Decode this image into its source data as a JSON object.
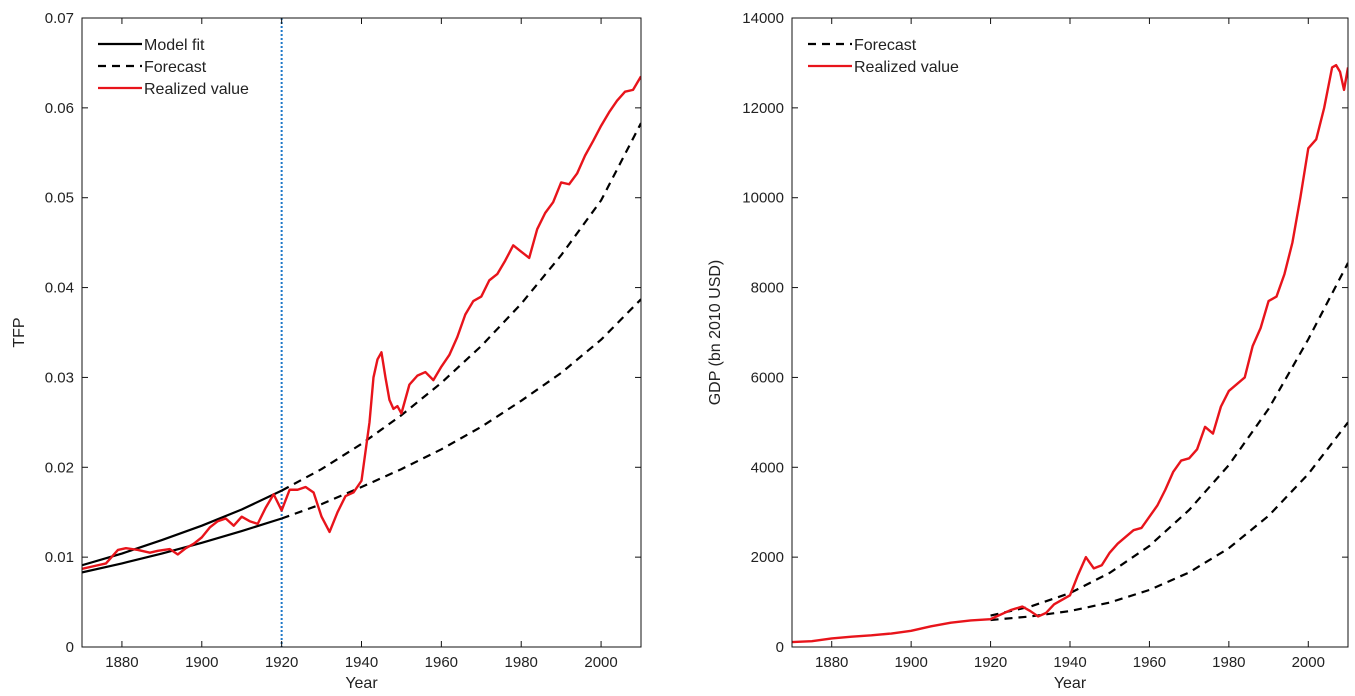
{
  "chart_data": [
    {
      "type": "line",
      "title": "",
      "xlabel": "Year",
      "ylabel": "TFP",
      "xlim": [
        1870,
        2010
      ],
      "ylim": [
        0,
        0.07
      ],
      "xticks": [
        1880,
        1900,
        1920,
        1940,
        1960,
        1980,
        2000
      ],
      "xtick_labels": [
        "1880",
        "1900",
        "1920",
        "1940",
        "1960",
        "1980",
        "2000"
      ],
      "yticks": [
        0,
        0.01,
        0.02,
        0.03,
        0.04,
        0.05,
        0.06,
        0.07
      ],
      "ytick_labels": [
        "0",
        "0.01",
        "0.02",
        "0.03",
        "0.04",
        "0.05",
        "0.06",
        "0.07"
      ],
      "grid": false,
      "legend_position": "top-left",
      "legend": [
        {
          "label": "Model fit",
          "series_style": "solid",
          "color": "#000000"
        },
        {
          "label": "Forecast",
          "series_style": "dashed",
          "color": "#000000"
        },
        {
          "label": "Realized value",
          "series_style": "solid",
          "color": "#e8141b"
        }
      ],
      "vline": {
        "x": 1920,
        "color": "#1f78c8",
        "style": "dotted"
      },
      "series": [
        {
          "legend_key": "Model fit",
          "style": "solid",
          "color": "#000000",
          "x": [
            1870,
            1880,
            1890,
            1900,
            1910,
            1920
          ],
          "y": [
            0.0091,
            0.0104,
            0.0119,
            0.0135,
            0.0153,
            0.0174
          ]
        },
        {
          "legend_key": "Model fit",
          "style": "solid",
          "color": "#000000",
          "x": [
            1870,
            1880,
            1890,
            1900,
            1910,
            1920
          ],
          "y": [
            0.0083,
            0.0093,
            0.0104,
            0.0116,
            0.0129,
            0.0143
          ]
        },
        {
          "legend_key": "Forecast",
          "style": "dashed",
          "color": "#000000",
          "x": [
            1920,
            1930,
            1940,
            1950,
            1960,
            1970,
            1980,
            1990,
            2000,
            2010
          ],
          "y": [
            0.0174,
            0.0198,
            0.0226,
            0.0258,
            0.0294,
            0.0335,
            0.0382,
            0.0436,
            0.0497,
            0.0583
          ]
        },
        {
          "legend_key": "Forecast",
          "style": "dashed",
          "color": "#000000",
          "x": [
            1920,
            1930,
            1940,
            1950,
            1960,
            1970,
            1980,
            1990,
            2000,
            2010
          ],
          "y": [
            0.0143,
            0.0159,
            0.0178,
            0.0198,
            0.022,
            0.0245,
            0.0274,
            0.0305,
            0.0342,
            0.0387
          ]
        },
        {
          "legend_key": "Realized value",
          "style": "solid",
          "color": "#e8141b",
          "x": [
            1870,
            1873,
            1876,
            1879,
            1881,
            1884,
            1887,
            1889,
            1892,
            1894,
            1896,
            1898,
            1900,
            1902,
            1904,
            1906,
            1908,
            1910,
            1912,
            1914,
            1916,
            1918,
            1920,
            1922,
            1924,
            1926,
            1928,
            1930,
            1932,
            1934,
            1936,
            1938,
            1940,
            1942,
            1943,
            1944,
            1945,
            1946,
            1947,
            1948,
            1949,
            1950,
            1952,
            1954,
            1956,
            1958,
            1960,
            1962,
            1964,
            1966,
            1968,
            1970,
            1972,
            1974,
            1976,
            1978,
            1980,
            1982,
            1984,
            1986,
            1988,
            1990,
            1992,
            1994,
            1996,
            1998,
            2000,
            2002,
            2004,
            2006,
            2008,
            2010
          ],
          "y": [
            0.0087,
            0.009,
            0.0093,
            0.0108,
            0.011,
            0.0108,
            0.0105,
            0.0107,
            0.0109,
            0.0103,
            0.011,
            0.0115,
            0.0122,
            0.0133,
            0.014,
            0.0143,
            0.0135,
            0.0145,
            0.014,
            0.0137,
            0.0155,
            0.017,
            0.0152,
            0.0175,
            0.0175,
            0.0178,
            0.0172,
            0.0145,
            0.0128,
            0.015,
            0.0168,
            0.0172,
            0.0185,
            0.025,
            0.03,
            0.032,
            0.0328,
            0.03,
            0.0275,
            0.0265,
            0.0268,
            0.026,
            0.0292,
            0.0302,
            0.0306,
            0.0297,
            0.0312,
            0.0325,
            0.0345,
            0.037,
            0.0385,
            0.039,
            0.0408,
            0.0415,
            0.043,
            0.0447,
            0.044,
            0.0433,
            0.0465,
            0.0483,
            0.0495,
            0.0517,
            0.0515,
            0.0527,
            0.0547,
            0.0563,
            0.058,
            0.0595,
            0.0608,
            0.0618,
            0.062,
            0.0635
          ]
        }
      ]
    },
    {
      "type": "line",
      "title": "",
      "xlabel": "Year",
      "ylabel": "GDP (bn 2010 USD)",
      "xlim": [
        1870,
        2010
      ],
      "ylim": [
        0,
        14000
      ],
      "xticks": [
        1880,
        1900,
        1920,
        1940,
        1960,
        1980,
        2000
      ],
      "xtick_labels": [
        "1880",
        "1900",
        "1920",
        "1940",
        "1960",
        "1980",
        "2000"
      ],
      "yticks": [
        0,
        2000,
        4000,
        6000,
        8000,
        10000,
        12000,
        14000
      ],
      "ytick_labels": [
        "0",
        "2000",
        "4000",
        "6000",
        "8000",
        "10000",
        "12000",
        "14000"
      ],
      "grid": false,
      "legend_position": "top-left",
      "legend": [
        {
          "label": "Forecast",
          "series_style": "dashed",
          "color": "#000000"
        },
        {
          "label": "Realized value",
          "series_style": "solid",
          "color": "#e8141b"
        }
      ],
      "series": [
        {
          "legend_key": "Forecast",
          "style": "dashed",
          "color": "#000000",
          "x": [
            1920,
            1930,
            1940,
            1950,
            1960,
            1970,
            1980,
            1990,
            2000,
            2010
          ],
          "y": [
            700,
            900,
            1200,
            1650,
            2250,
            3050,
            4050,
            5300,
            6850,
            8550
          ]
        },
        {
          "legend_key": "Forecast",
          "style": "dashed",
          "color": "#000000",
          "x": [
            1920,
            1930,
            1940,
            1950,
            1960,
            1970,
            1980,
            1990,
            2000,
            2010
          ],
          "y": [
            600,
            680,
            800,
            990,
            1270,
            1660,
            2200,
            2920,
            3850,
            5000
          ]
        },
        {
          "legend_key": "Realized value",
          "style": "solid",
          "color": "#e8141b",
          "x": [
            1870,
            1875,
            1880,
            1885,
            1890,
            1895,
            1900,
            1905,
            1910,
            1915,
            1920,
            1925,
            1928,
            1930,
            1932,
            1934,
            1936,
            1938,
            1940,
            1942,
            1944,
            1946,
            1948,
            1950,
            1952,
            1954,
            1956,
            1958,
            1960,
            1962,
            1964,
            1966,
            1968,
            1970,
            1972,
            1974,
            1976,
            1978,
            1980,
            1982,
            1984,
            1986,
            1988,
            1990,
            1992,
            1994,
            1996,
            1998,
            2000,
            2002,
            2004,
            2006,
            2007,
            2008,
            2009,
            2010
          ],
          "y": [
            110,
            130,
            190,
            230,
            260,
            300,
            360,
            460,
            540,
            590,
            620,
            820,
            900,
            800,
            680,
            760,
            950,
            1050,
            1150,
            1600,
            2000,
            1750,
            1820,
            2100,
            2300,
            2450,
            2600,
            2650,
            2900,
            3150,
            3500,
            3900,
            4150,
            4200,
            4400,
            4900,
            4750,
            5350,
            5700,
            5850,
            6000,
            6700,
            7100,
            7700,
            7800,
            8300,
            9000,
            10000,
            11100,
            11300,
            12000,
            12900,
            12950,
            12800,
            12400,
            12900
          ]
        }
      ]
    }
  ]
}
